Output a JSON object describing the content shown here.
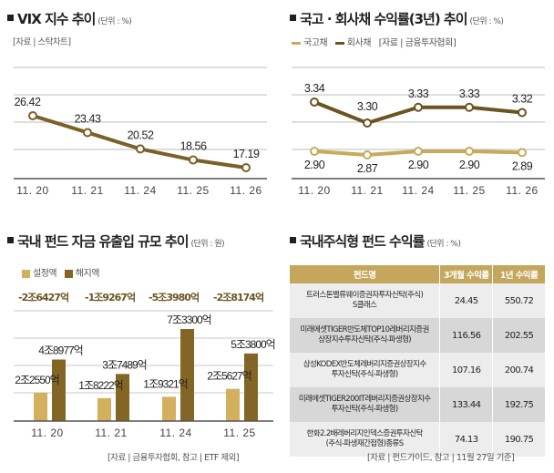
{
  "colors": {
    "vix_line": "#7a6128",
    "corporate_bond": "#6b5420",
    "government_bond": "#c7aa5a",
    "inflow_bar": "#d2b05e",
    "outflow_bar": "#836525",
    "table_header": "#c4a65c",
    "net_flow_text": "#6b5420"
  },
  "chart_data": [
    {
      "id": "vix",
      "type": "line",
      "title": "VIX 지수 추이",
      "unit": "(단위 : %)",
      "source": "[자료 | 스탁차트]",
      "categories": [
        "11. 20",
        "11. 21",
        "11. 24",
        "11. 25",
        "11. 26"
      ],
      "series": [
        {
          "name": "VIX",
          "values": [
            26.42,
            23.43,
            20.52,
            18.56,
            17.19
          ],
          "labels": [
            "26.42",
            "23.43",
            "20.52",
            "18.56",
            "17.19"
          ]
        }
      ],
      "grid": true
    },
    {
      "id": "bond",
      "type": "line",
      "title": "국고 · 회사채 수익률(3년) 추이",
      "unit": "(단위 : %)",
      "source": "[자료 | 금융투자협회]",
      "legend": [
        "국고채",
        "회사채"
      ],
      "categories": [
        "11. 20",
        "11. 21",
        "11. 24",
        "11. 25",
        "11. 26"
      ],
      "series": [
        {
          "name": "국고채",
          "values": [
            2.9,
            2.87,
            2.9,
            2.9,
            2.89
          ],
          "labels": [
            "2.90",
            "2.87",
            "2.90",
            "2.90",
            "2.89"
          ]
        },
        {
          "name": "회사채",
          "values": [
            3.34,
            3.3,
            3.33,
            3.33,
            3.32
          ],
          "labels": [
            "3.34",
            "3.30",
            "3.33",
            "3.33",
            "3.32"
          ]
        }
      ],
      "grid": true
    },
    {
      "id": "fundflow",
      "type": "bar",
      "title": "국내 펀드 자금 유출입 규모 추이",
      "unit": "(단위 : 원)",
      "source": "[자료 | 금융투자협회, 참고 | ETF 제외]",
      "legend": [
        "설정액",
        "해지액"
      ],
      "categories": [
        "11. 20",
        "11. 21",
        "11. 24",
        "11. 25"
      ],
      "net_flows": [
        "-2조6427억",
        "-1조9267억",
        "-5조3980억",
        "-2조8174억"
      ],
      "series": [
        {
          "name": "설정액",
          "values_eok": [
            22550,
            18222,
            19321,
            25627
          ],
          "labels": [
            "2조2550억",
            "1조8222억",
            "1조9321억",
            "2조5627억"
          ]
        },
        {
          "name": "해지액",
          "values_eok": [
            48977,
            37489,
            73300,
            53800
          ],
          "labels": [
            "4조8977억",
            "3조7489억",
            "7조3300억",
            "5조3800억"
          ]
        }
      ],
      "grid": true
    },
    {
      "id": "fundreturns",
      "type": "table",
      "title": "국내주식형 펀드 수익률",
      "unit": "(단위 : %)",
      "source": "[자료 | 펀드가이드, 참고 | 11월 27일 기준]",
      "columns": [
        "펀드명",
        "3개월 수익률",
        "1년 수익률"
      ],
      "rows": [
        {
          "name_line1": "트러스톤밸류웨이증권자투자신탁(주식)",
          "name_line2": "S클래스",
          "r3m": "24.45",
          "r1y": "550.72"
        },
        {
          "name_line1": "미래에셋TIGER반도체TOP10레버리지증권",
          "name_line2": "상장지수투자신탁(주식-파생형)",
          "r3m": "116.56",
          "r1y": "202.55"
        },
        {
          "name_line1": "삼성KODEX반도체레버리지증권상장지수",
          "name_line2": "투자신탁(주식-파생형)",
          "r3m": "107.16",
          "r1y": "200.74"
        },
        {
          "name_line1": "미래에셋TIGER200IT레버리지증권상장지수",
          "name_line2": "투자신탁(주식-파생형)",
          "r3m": "133.44",
          "r1y": "192.75"
        },
        {
          "name_line1": "한화2.2배레버리지인덱스증권투자신탁",
          "name_line2": "(주식-파생재간접형)종류S",
          "r3m": "74.13",
          "r1y": "190.75"
        }
      ]
    }
  ]
}
